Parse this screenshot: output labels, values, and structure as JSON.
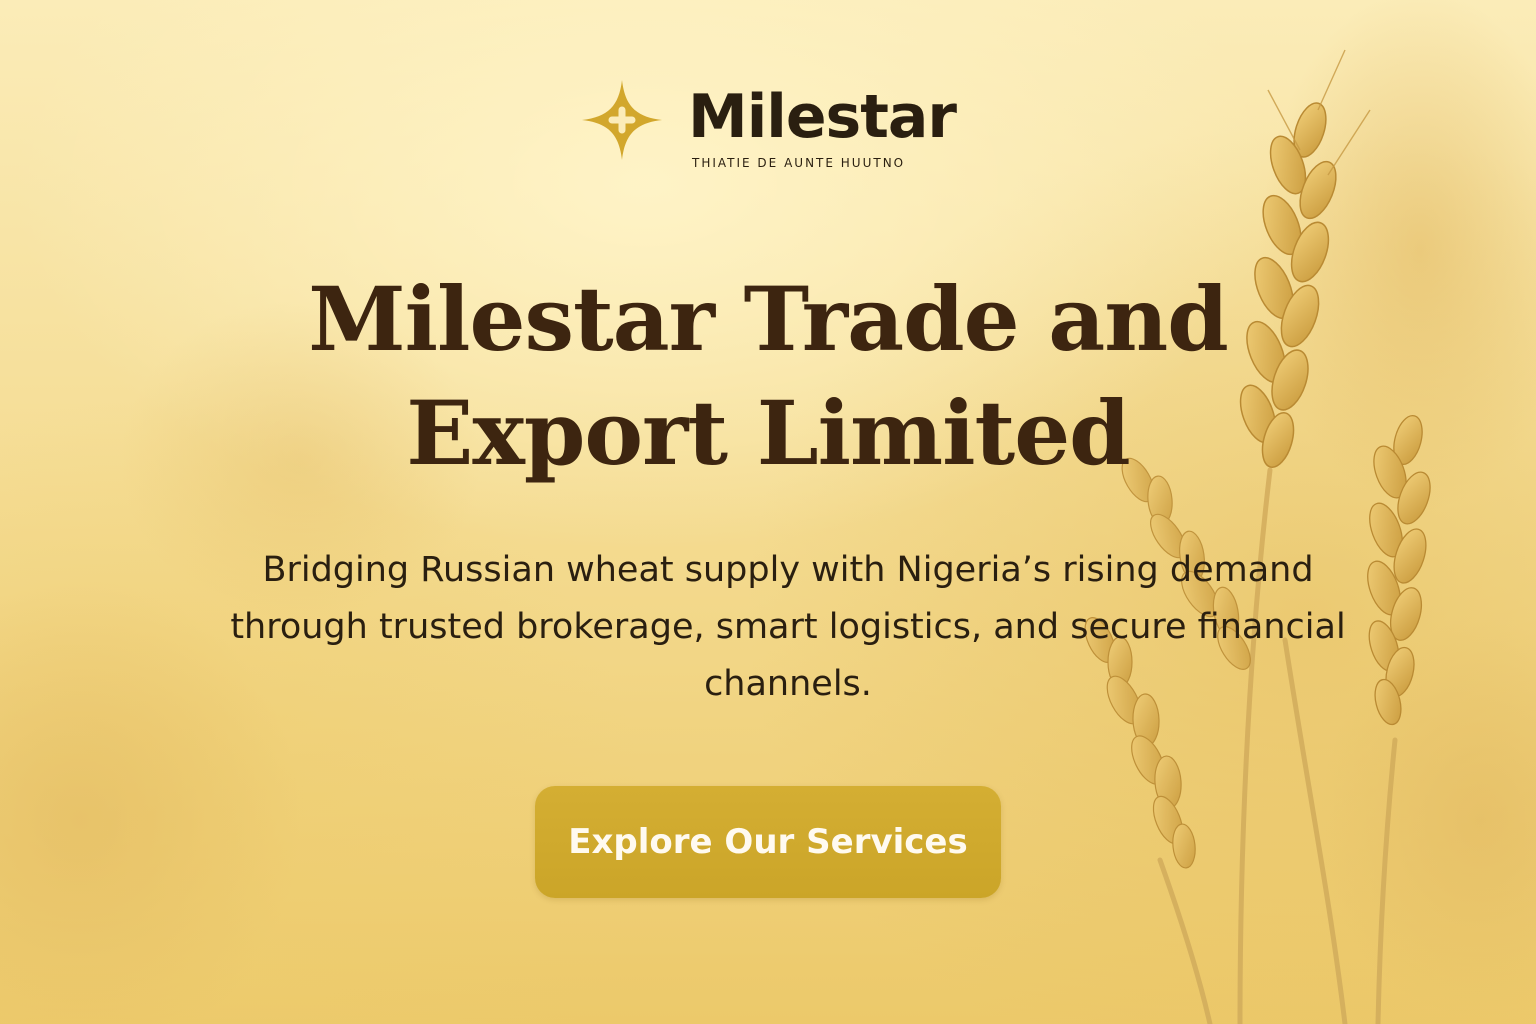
{
  "brand": {
    "name": "Milestar",
    "tagline": "THIATIE  DE  AUNTE  HUUTNO",
    "logo_icon": "four-point-star-icon",
    "logo_color": "#d2a72c"
  },
  "hero": {
    "title_line1": "Milestar Trade and",
    "title_line2": "Export Limited",
    "subtitle": "Bridging Russian wheat supply with Nigeria’s rising demand through trusted brokerage, smart logistics, and secure financial channels.",
    "cta_label": "Explore Our Services"
  },
  "colors": {
    "background": "#f7e3a2",
    "heading": "#3d2510",
    "body_text": "#2a1f10",
    "accent": "#cfa92c",
    "button_text": "#fffaf0"
  }
}
